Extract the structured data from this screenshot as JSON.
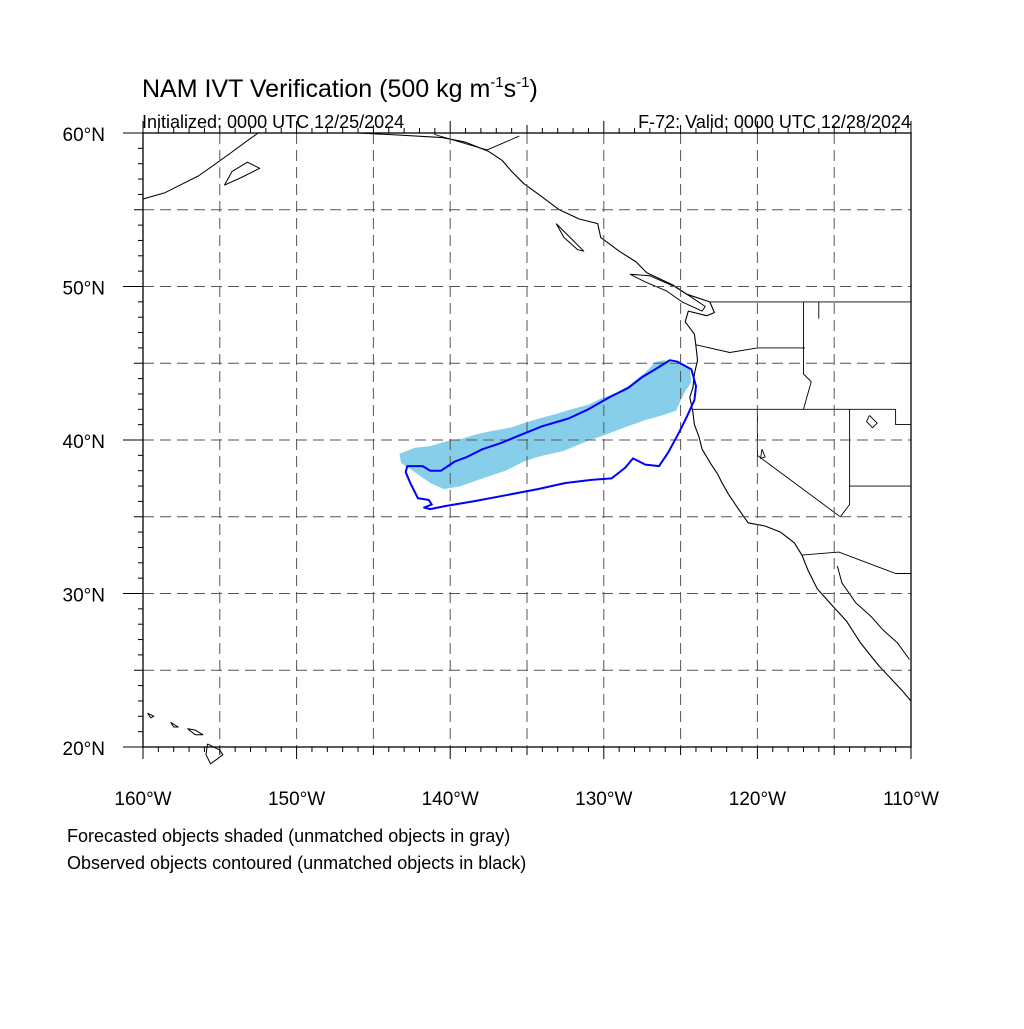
{
  "figure": {
    "title_text": "NAM IVT Verification (500 kg m",
    "title_exp1": "-1",
    "title_mid": "s",
    "title_exp2": "-1",
    "title_end": ")",
    "init_label": "Initialized: 0000 UTC 12/25/2024",
    "valid_label": "F-72: Valid: 0000 UTC 12/28/2024"
  },
  "map": {
    "projection": "cylindrical equidistant",
    "lon_range": [
      -160,
      -110
    ],
    "lat_range": [
      20,
      60
    ],
    "lat_tick_labels": [
      "60°N",
      "50°N",
      "40°N",
      "30°N",
      "20°N"
    ],
    "lon_tick_labels": [
      "160°W",
      "150°W",
      "140°W",
      "130°W",
      "120°W",
      "110°W"
    ],
    "gridlines": "dashed, every 5°",
    "colors": {
      "forecast_fill": "#87ceeb",
      "observed_contour": "#0000ff",
      "coastline": "#000000",
      "gridline": "#555555"
    }
  },
  "objects": {
    "forecast_shaded": [
      [
        -143.3,
        39.1
      ],
      [
        -142.3,
        39.5
      ],
      [
        -141.3,
        39.6
      ],
      [
        -140.3,
        39.9
      ],
      [
        -139.2,
        40.1
      ],
      [
        -138.2,
        40.4
      ],
      [
        -137.2,
        40.6
      ],
      [
        -136.1,
        40.8
      ],
      [
        -135.2,
        41.1
      ],
      [
        -134.2,
        41.4
      ],
      [
        -133.1,
        41.7
      ],
      [
        -132.1,
        42.0
      ],
      [
        -131.0,
        42.3
      ],
      [
        -130.2,
        42.7
      ],
      [
        -129.1,
        43.1
      ],
      [
        -128.3,
        43.6
      ],
      [
        -127.3,
        44.4
      ],
      [
        -126.6,
        45.1
      ],
      [
        -126.1,
        45.2
      ],
      [
        -125.2,
        45.0
      ],
      [
        -124.4,
        44.6
      ],
      [
        -124.3,
        43.8
      ],
      [
        -124.8,
        43.0
      ],
      [
        -125.3,
        41.9
      ],
      [
        -126.2,
        41.6
      ],
      [
        -127.3,
        41.3
      ],
      [
        -128.7,
        40.8
      ],
      [
        -130.0,
        40.3
      ],
      [
        -130.9,
        40.0
      ],
      [
        -132.6,
        39.3
      ],
      [
        -134.3,
        38.9
      ],
      [
        -135.2,
        38.6
      ],
      [
        -136.4,
        38.0
      ],
      [
        -137.9,
        37.5
      ],
      [
        -139.3,
        37.0
      ],
      [
        -140.4,
        36.8
      ],
      [
        -141.3,
        37.2
      ],
      [
        -142.3,
        37.9
      ],
      [
        -143.2,
        38.5
      ]
    ],
    "observed_contour": [
      [
        -142.4,
        38.3
      ],
      [
        -141.8,
        38.3
      ],
      [
        -141.3,
        38.0
      ],
      [
        -140.6,
        38.0
      ],
      [
        -139.7,
        38.6
      ],
      [
        -138.9,
        38.9
      ],
      [
        -137.9,
        39.4
      ],
      [
        -136.7,
        39.8
      ],
      [
        -135.5,
        40.3
      ],
      [
        -134.0,
        40.9
      ],
      [
        -132.3,
        41.4
      ],
      [
        -131.0,
        42.0
      ],
      [
        -129.6,
        42.8
      ],
      [
        -128.4,
        43.4
      ],
      [
        -127.5,
        44.1
      ],
      [
        -126.5,
        44.7
      ],
      [
        -125.7,
        45.2
      ],
      [
        -125.2,
        45.1
      ],
      [
        -124.3,
        44.6
      ],
      [
        -124.0,
        43.5
      ],
      [
        -124.1,
        42.6
      ],
      [
        -124.6,
        41.5
      ],
      [
        -125.1,
        40.5
      ],
      [
        -125.8,
        39.2
      ],
      [
        -126.4,
        38.3
      ],
      [
        -127.3,
        38.4
      ],
      [
        -128.1,
        38.8
      ],
      [
        -128.6,
        38.2
      ],
      [
        -129.5,
        37.5
      ],
      [
        -130.8,
        37.4
      ],
      [
        -132.5,
        37.2
      ],
      [
        -134.3,
        36.8
      ],
      [
        -136.4,
        36.4
      ],
      [
        -138.5,
        36.0
      ],
      [
        -140.3,
        35.7
      ],
      [
        -141.3,
        35.5
      ],
      [
        -141.7,
        35.6
      ],
      [
        -141.2,
        35.8
      ],
      [
        -141.4,
        36.1
      ],
      [
        -142.1,
        36.2
      ],
      [
        -142.3,
        36.6
      ],
      [
        -142.6,
        37.2
      ],
      [
        -142.9,
        37.9
      ],
      [
        -142.8,
        38.3
      ]
    ]
  },
  "coastlines": {
    "north_america_west": [
      [
        -146,
        60
      ],
      [
        -144,
        59.9
      ],
      [
        -140.5,
        59.7
      ],
      [
        -139,
        59.4
      ],
      [
        -137.5,
        58.8
      ],
      [
        -136.6,
        58.2
      ],
      [
        -136.0,
        57.5
      ],
      [
        -135.2,
        56.7
      ],
      [
        -134.1,
        55.9
      ],
      [
        -132.9,
        55.0
      ],
      [
        -131.6,
        54.4
      ],
      [
        -130.4,
        54.1
      ],
      [
        -130.2,
        53.2
      ],
      [
        -129.0,
        52.3
      ],
      [
        -127.9,
        51.6
      ],
      [
        -127.2,
        50.9
      ],
      [
        -125.5,
        50.1
      ],
      [
        -124.6,
        49.5
      ],
      [
        -123.1,
        49.0
      ],
      [
        -122.8,
        48.3
      ],
      [
        -123.3,
        48.1
      ],
      [
        -124.5,
        48.4
      ],
      [
        -124.7,
        47.7
      ],
      [
        -124.1,
        46.9
      ],
      [
        -124.0,
        46.1
      ],
      [
        -123.9,
        45.2
      ],
      [
        -124.1,
        44.3
      ],
      [
        -124.2,
        43.4
      ],
      [
        -124.4,
        42.8
      ],
      [
        -124.2,
        41.8
      ],
      [
        -124.1,
        41.0
      ],
      [
        -123.8,
        40.2
      ],
      [
        -123.6,
        39.4
      ],
      [
        -123.0,
        38.4
      ],
      [
        -122.6,
        37.8
      ],
      [
        -122.3,
        37.2
      ],
      [
        -121.9,
        36.5
      ],
      [
        -121.3,
        35.6
      ],
      [
        -120.6,
        34.6
      ],
      [
        -119.5,
        34.4
      ],
      [
        -118.5,
        34.0
      ],
      [
        -117.6,
        33.3
      ],
      [
        -117.1,
        32.5
      ],
      [
        -116.7,
        31.5
      ],
      [
        -116.1,
        30.3
      ],
      [
        -115.2,
        29.3
      ],
      [
        -114.2,
        28.2
      ],
      [
        -113.3,
        26.8
      ],
      [
        -112.1,
        25.3
      ],
      [
        -110.6,
        23.7
      ],
      [
        -110,
        23
      ]
    ],
    "vancouver_island": [
      [
        -128.3,
        50.8
      ],
      [
        -127.3,
        50.3
      ],
      [
        -125.9,
        49.7
      ],
      [
        -124.9,
        49.0
      ],
      [
        -123.6,
        48.4
      ],
      [
        -123.4,
        48.7
      ],
      [
        -124.3,
        49.3
      ],
      [
        -125.4,
        50.0
      ],
      [
        -127.0,
        50.7
      ],
      [
        -128.3,
        50.8
      ]
    ],
    "haida_gwaii": [
      [
        -133.1,
        54.1
      ],
      [
        -132.2,
        53.2
      ],
      [
        -131.3,
        52.3
      ],
      [
        -131.7,
        52.4
      ],
      [
        -132.6,
        53.2
      ],
      [
        -133.1,
        54.1
      ]
    ],
    "gulf_of_california": [
      [
        -114.8,
        31.8
      ],
      [
        -114.5,
        30.7
      ],
      [
        -113.6,
        29.4
      ],
      [
        -112.6,
        28.5
      ],
      [
        -111.8,
        27.6
      ],
      [
        -110.9,
        26.8
      ],
      [
        -110.1,
        25.7
      ]
    ],
    "alaska_peninsula": [
      [
        -160,
        55.7
      ],
      [
        -158.6,
        56.1
      ],
      [
        -157.4,
        56.7
      ],
      [
        -156.4,
        57.2
      ],
      [
        -155.4,
        57.9
      ],
      [
        -154.3,
        58.7
      ],
      [
        -153.2,
        59.5
      ],
      [
        -152.5,
        60
      ]
    ],
    "kodiak": [
      [
        -154.7,
        56.6
      ],
      [
        -153.6,
        57.1
      ],
      [
        -152.4,
        57.7
      ],
      [
        -153.2,
        58.1
      ],
      [
        -154.2,
        57.5
      ],
      [
        -154.7,
        56.6
      ]
    ],
    "hawaii": [
      [
        [
          -159.7,
          22.2
        ],
        [
          -159.3,
          22.0
        ],
        [
          -159.5,
          21.9
        ],
        [
          -159.7,
          22.2
        ]
      ],
      [
        [
          -158.2,
          21.6
        ],
        [
          -157.7,
          21.3
        ],
        [
          -158.0,
          21.3
        ],
        [
          -158.2,
          21.6
        ]
      ],
      [
        [
          -157.1,
          21.2
        ],
        [
          -156.6,
          20.8
        ],
        [
          -156.1,
          20.8
        ],
        [
          -156.6,
          21.1
        ],
        [
          -157.1,
          21.2
        ]
      ],
      [
        [
          -155.8,
          20.2
        ],
        [
          -155.0,
          19.8
        ],
        [
          -154.8,
          19.5
        ],
        [
          -155.6,
          18.9
        ],
        [
          -155.9,
          19.5
        ],
        [
          -155.8,
          20.2
        ]
      ]
    ],
    "borders": [
      [
        [
          -141,
          60
        ],
        [
          -141,
          59.9
        ],
        [
          -139,
          59.3
        ],
        [
          -137.6,
          58.9
        ],
        [
          -135.5,
          59.8
        ]
      ],
      [
        [
          -123.1,
          49.0
        ],
        [
          -110,
          49.0
        ]
      ],
      [
        [
          -124.2,
          42.0
        ],
        [
          -111,
          42.0
        ]
      ],
      [
        [
          -120.0,
          42.0
        ],
        [
          -120.0,
          39.0
        ],
        [
          -114.6,
          35.0
        ]
      ],
      [
        [
          -117.1,
          32.5
        ],
        [
          -114.7,
          32.7
        ],
        [
          -111,
          31.3
        ],
        [
          -110,
          31.3
        ]
      ],
      [
        [
          -116.9,
          46.0
        ],
        [
          -120.0,
          46.0
        ],
        [
          -121.8,
          45.7
        ],
        [
          -124.0,
          46.2
        ]
      ],
      [
        [
          -117.0,
          49.0
        ],
        [
          -117.0,
          44.3
        ],
        [
          -116.5,
          43.8
        ],
        [
          -117.0,
          42.0
        ]
      ],
      [
        [
          -116.0,
          49.0
        ],
        [
          -116.0,
          47.9
        ]
      ],
      [
        [
          -114.0,
          42.0
        ],
        [
          -114.0,
          35.8
        ],
        [
          -114.6,
          35.0
        ]
      ],
      [
        [
          -111.0,
          45.0
        ],
        [
          -110,
          45.0
        ]
      ],
      [
        [
          -111.0,
          42.0
        ],
        [
          -111.0,
          41.0
        ],
        [
          -110,
          41.0
        ]
      ],
      [
        [
          -114.0,
          37.0
        ],
        [
          -110,
          37.0
        ]
      ]
    ],
    "lakes": [
      [
        [
          -112.7,
          41.6
        ],
        [
          -112.2,
          41.1
        ],
        [
          -112.5,
          40.8
        ],
        [
          -112.9,
          41.2
        ],
        [
          -112.7,
          41.6
        ]
      ],
      [
        [
          -119.7,
          39.4
        ],
        [
          -119.5,
          38.9
        ],
        [
          -119.8,
          38.8
        ],
        [
          -119.7,
          39.4
        ]
      ]
    ]
  },
  "notes": {
    "line1": "Forecasted objects shaded (unmatched objects in gray)",
    "line2": "Observed objects contoured (unmatched objects in black)"
  }
}
